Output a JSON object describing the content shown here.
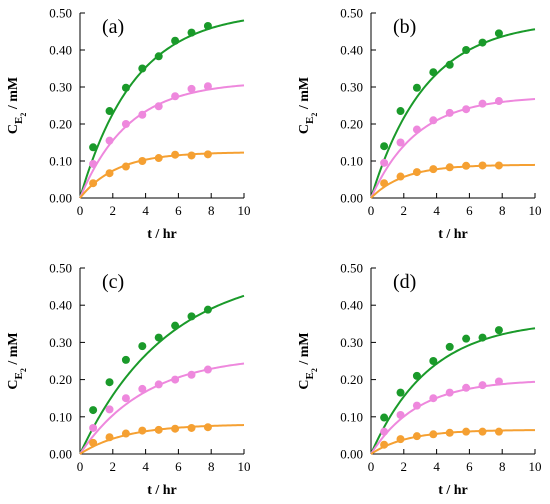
{
  "chart_data": [
    {
      "type": "scatter",
      "panel_label": "(a)",
      "xlabel": "t / hr",
      "ylabel": {
        "main": "C",
        "sub": "E",
        "subsub": "2",
        "unit": " / mM"
      },
      "xlim": [
        0,
        10
      ],
      "ylim": [
        0,
        0.5
      ],
      "xticks": [
        "0",
        "2",
        "4",
        "6",
        "8",
        "10"
      ],
      "yticks": [
        "0.00",
        "0.10",
        "0.20",
        "0.30",
        "0.40",
        "0.50"
      ],
      "series": [
        {
          "color": "#1a9a2a",
          "x": [
            0.8,
            1.8,
            2.8,
            3.8,
            4.8,
            5.8,
            6.8,
            7.8
          ],
          "y": [
            0.137,
            0.235,
            0.298,
            0.35,
            0.383,
            0.425,
            0.447,
            0.465
          ],
          "fit_plateau": 0.505,
          "fit_rate": 0.3
        },
        {
          "color": "#ee88dd",
          "x": [
            0.8,
            1.8,
            2.8,
            3.8,
            4.8,
            5.8,
            6.8,
            7.8
          ],
          "y": [
            0.092,
            0.155,
            0.2,
            0.225,
            0.248,
            0.275,
            0.295,
            0.302
          ],
          "fit_plateau": 0.315,
          "fit_rate": 0.34
        },
        {
          "color": "#f5a032",
          "x": [
            0.8,
            1.8,
            2.8,
            3.8,
            4.8,
            5.8,
            6.8,
            7.8
          ],
          "y": [
            0.04,
            0.067,
            0.085,
            0.1,
            0.108,
            0.117,
            0.115,
            0.118
          ],
          "fit_plateau": 0.124,
          "fit_rate": 0.45
        }
      ]
    },
    {
      "type": "scatter",
      "panel_label": "(b)",
      "xlabel": "t / hr",
      "ylabel": {
        "main": "C",
        "sub": "E",
        "subsub": "2",
        "unit": " / mM"
      },
      "xlim": [
        0,
        10
      ],
      "ylim": [
        0,
        0.5
      ],
      "xticks": [
        "0",
        "2",
        "4",
        "6",
        "8",
        "10"
      ],
      "yticks": [
        "0.00",
        "0.10",
        "0.20",
        "0.30",
        "0.40",
        "0.50"
      ],
      "series": [
        {
          "color": "#1a9a2a",
          "x": [
            0.8,
            1.8,
            2.8,
            3.8,
            4.8,
            5.8,
            6.8,
            7.8
          ],
          "y": [
            0.14,
            0.235,
            0.298,
            0.34,
            0.36,
            0.4,
            0.42,
            0.445
          ],
          "fit_plateau": 0.48,
          "fit_rate": 0.3
        },
        {
          "color": "#ee88dd",
          "x": [
            0.8,
            1.8,
            2.8,
            3.8,
            4.8,
            5.8,
            6.8,
            7.8
          ],
          "y": [
            0.095,
            0.15,
            0.185,
            0.21,
            0.23,
            0.24,
            0.255,
            0.262
          ],
          "fit_plateau": 0.275,
          "fit_rate": 0.36
        },
        {
          "color": "#f5a032",
          "x": [
            0.8,
            1.8,
            2.8,
            3.8,
            4.8,
            5.8,
            6.8,
            7.8
          ],
          "y": [
            0.04,
            0.058,
            0.07,
            0.078,
            0.083,
            0.087,
            0.088,
            0.088
          ],
          "fit_plateau": 0.09,
          "fit_rate": 0.5
        }
      ]
    },
    {
      "type": "scatter",
      "panel_label": "(c)",
      "xlabel": "t / hr",
      "ylabel": {
        "main": "C",
        "sub": "E",
        "subsub": "2",
        "unit": " / mM"
      },
      "xlim": [
        0,
        10
      ],
      "ylim": [
        0,
        0.5
      ],
      "xticks": [
        "0",
        "2",
        "4",
        "6",
        "8",
        "10"
      ],
      "yticks": [
        "0.00",
        "0.10",
        "0.20",
        "0.30",
        "0.40",
        "0.50"
      ],
      "series": [
        {
          "color": "#1a9a2a",
          "x": [
            0.8,
            1.8,
            2.8,
            3.8,
            4.8,
            5.8,
            6.8,
            7.8
          ],
          "y": [
            0.118,
            0.193,
            0.253,
            0.29,
            0.313,
            0.345,
            0.37,
            0.388
          ],
          "fit_plateau": 0.5,
          "fit_rate": 0.19
        },
        {
          "color": "#ee88dd",
          "x": [
            0.8,
            1.8,
            2.8,
            3.8,
            4.8,
            5.8,
            6.8,
            7.8
          ],
          "y": [
            0.07,
            0.12,
            0.15,
            0.175,
            0.187,
            0.2,
            0.213,
            0.227
          ],
          "fit_plateau": 0.265,
          "fit_rate": 0.25
        },
        {
          "color": "#f5a032",
          "x": [
            0.8,
            1.8,
            2.8,
            3.8,
            4.8,
            5.8,
            6.8,
            7.8
          ],
          "y": [
            0.03,
            0.045,
            0.055,
            0.063,
            0.065,
            0.068,
            0.07,
            0.072
          ],
          "fit_plateau": 0.08,
          "fit_rate": 0.36
        }
      ]
    },
    {
      "type": "scatter",
      "panel_label": "(d)",
      "xlabel": "t / hr",
      "ylabel": {
        "main": "C",
        "sub": "E",
        "subsub": "2",
        "unit": " / mM"
      },
      "xlim": [
        0,
        10
      ],
      "ylim": [
        0,
        0.5
      ],
      "xticks": [
        "0",
        "2",
        "4",
        "6",
        "8",
        "10"
      ],
      "yticks": [
        "0.00",
        "0.10",
        "0.20",
        "0.30",
        "0.40",
        "0.50"
      ],
      "series": [
        {
          "color": "#1a9a2a",
          "x": [
            0.8,
            1.8,
            2.8,
            3.8,
            4.8,
            5.8,
            6.8,
            7.8
          ],
          "y": [
            0.098,
            0.165,
            0.21,
            0.25,
            0.288,
            0.31,
            0.313,
            0.333
          ],
          "fit_plateau": 0.36,
          "fit_rate": 0.28
        },
        {
          "color": "#ee88dd",
          "x": [
            0.8,
            1.8,
            2.8,
            3.8,
            4.8,
            5.8,
            6.8,
            7.8
          ],
          "y": [
            0.06,
            0.105,
            0.13,
            0.15,
            0.165,
            0.178,
            0.185,
            0.195
          ],
          "fit_plateau": 0.2,
          "fit_rate": 0.35
        },
        {
          "color": "#f5a032",
          "x": [
            0.8,
            1.8,
            2.8,
            3.8,
            4.8,
            5.8,
            6.8,
            7.8
          ],
          "y": [
            0.025,
            0.04,
            0.048,
            0.053,
            0.057,
            0.06,
            0.06,
            0.06
          ],
          "fit_plateau": 0.065,
          "fit_rate": 0.45
        }
      ]
    }
  ]
}
